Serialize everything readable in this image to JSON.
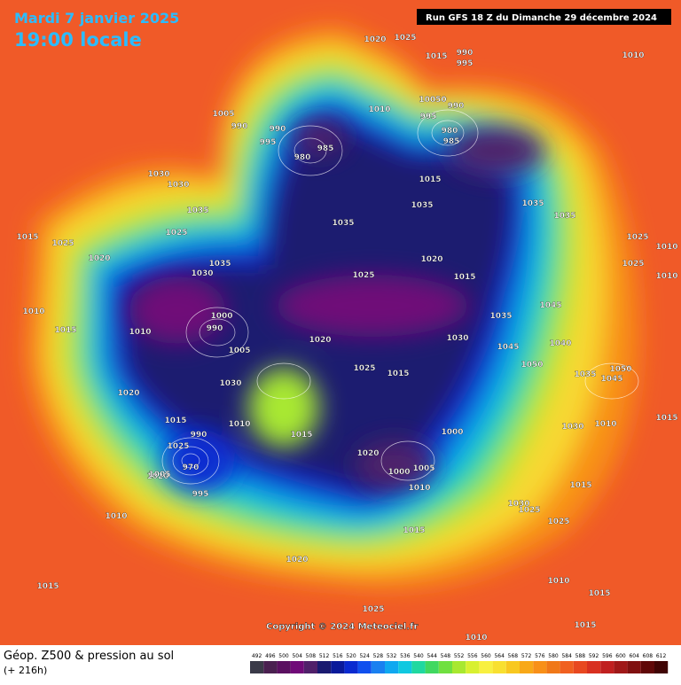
{
  "header": {
    "date": "Mardi 7 janvier 2025",
    "time": "19:00 locale",
    "run": "Run GFS 18 Z du Dimanche 29 décembre 2024"
  },
  "footer": {
    "title": "Géop. Z500 & pression au sol",
    "lead": "(+ 216h)",
    "copyright": "Copyright © 2024 Meteociel.fr"
  },
  "legend": {
    "levels": [
      492,
      496,
      500,
      504,
      508,
      512,
      516,
      520,
      524,
      528,
      532,
      536,
      540,
      544,
      548,
      552,
      556,
      560,
      564,
      568,
      572,
      576,
      580,
      584,
      588,
      592,
      596,
      600,
      604,
      608,
      612
    ],
    "colors": [
      "#3a3a48",
      "#4a2050",
      "#5a1060",
      "#700a78",
      "#50206a",
      "#1a1a70",
      "#0a1a9a",
      "#0a2ad0",
      "#1050ee",
      "#1a80f0",
      "#10a8f0",
      "#10c8e0",
      "#20d8a0",
      "#40d860",
      "#70e040",
      "#a8e830",
      "#d8f030",
      "#f8f040",
      "#f8e030",
      "#f8c820",
      "#f8a818",
      "#f89018",
      "#f07818",
      "#f06020",
      "#e84820",
      "#d83020",
      "#c02020",
      "#a01818",
      "#801010",
      "#600808",
      "#400404"
    ]
  },
  "pressure_labels": [
    "1020",
    "1025",
    "1015",
    "990",
    "995",
    "1010",
    "1005",
    "990",
    "990",
    "995",
    "985",
    "980",
    "1010",
    "10050",
    "990",
    "995",
    "980",
    "985",
    "1030",
    "1030",
    "1035",
    "1025",
    "1015",
    "1035",
    "1035",
    "1035",
    "1035",
    "1025",
    "1010",
    "1015",
    "1025",
    "1020",
    "1035",
    "1030",
    "1025",
    "1020",
    "1015",
    "1025",
    "1010",
    "1010",
    "1015",
    "990",
    "1000",
    "1005",
    "1020",
    "1035",
    "1045",
    "1040",
    "1030",
    "1020",
    "1025",
    "1015",
    "1045",
    "1035",
    "1050",
    "1045",
    "1050",
    "1010",
    "1015",
    "1025",
    "1020",
    "1010",
    "1015",
    "1030",
    "1000",
    "1005",
    "1020",
    "1000",
    "990",
    "970",
    "1005",
    "995",
    "1010",
    "1030",
    "1025",
    "1015",
    "1010",
    "1030",
    "1025",
    "1015",
    "1020",
    "1025",
    "1010",
    "1015",
    "1010",
    "1015",
    "1015",
    "1010",
    "1015"
  ]
}
